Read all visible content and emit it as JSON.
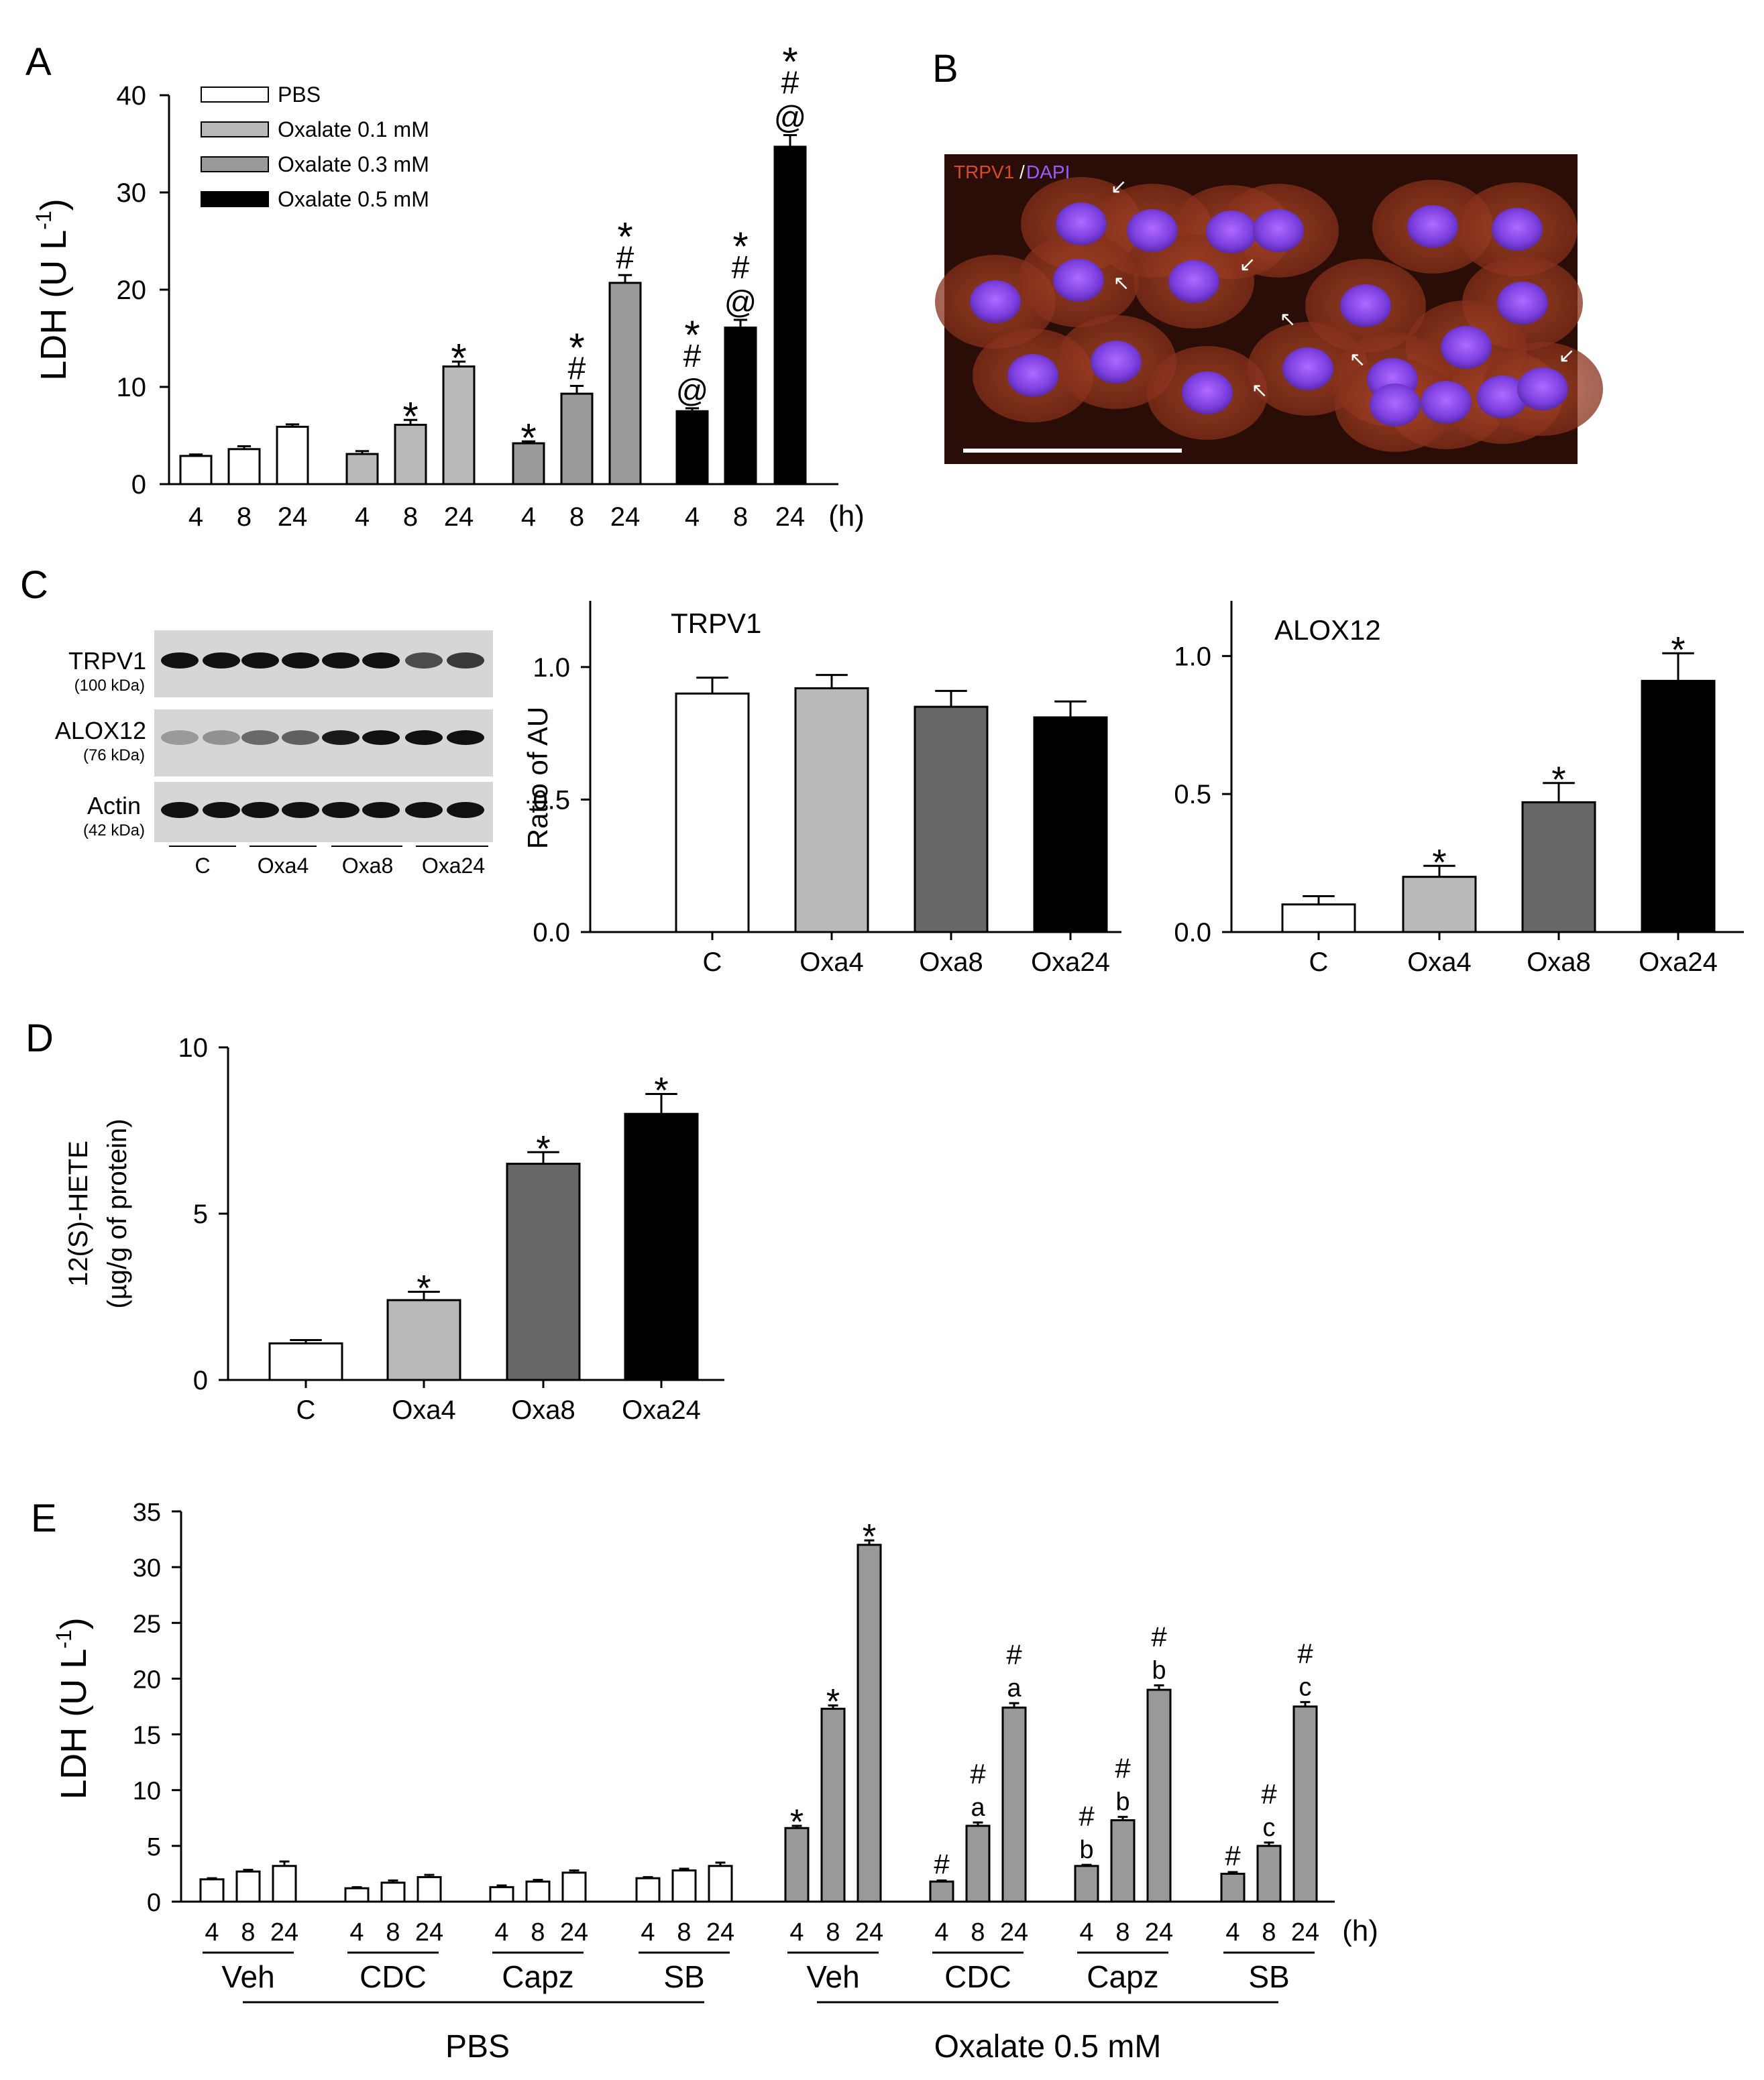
{
  "colors": {
    "white": "#ffffff",
    "light_gray": "#b9b9b9",
    "mid_gray": "#999999",
    "dark_gray": "#676767",
    "black": "#000000"
  },
  "panels": {
    "A": {
      "letter": "A"
    },
    "B": {
      "letter": "B",
      "label_trpv1": "TRPV1",
      "label_slash": "/",
      "label_dapi": "DAPI"
    },
    "C": {
      "letter": "C",
      "blot_bands": [
        {
          "name": "TRPV1",
          "kda": "(100 kDa)"
        },
        {
          "name": "ALOX12",
          "kda": "(76 kDa)"
        },
        {
          "name": "Actin",
          "kda": "(42 kDa)"
        }
      ],
      "blot_lanes": [
        "C",
        "Oxa4",
        "Oxa8",
        "Oxa24"
      ]
    },
    "D": {
      "letter": "D"
    },
    "E": {
      "letter": "E",
      "groups": [
        "Veh",
        "CDC",
        "Capz",
        "SB",
        "Veh",
        "CDC",
        "Capz",
        "SB"
      ],
      "supergroups": [
        "PBS",
        "Oxalate 0.5 mM"
      ]
    }
  },
  "chart_data": [
    {
      "id": "A",
      "type": "bar",
      "ylabel": "LDH (U L",
      "ylabel_sup": "-1",
      ")": ")",
      "ylim": [
        0,
        40
      ],
      "yticks": [
        0,
        10,
        20,
        30,
        40
      ],
      "x_unit": "(h)",
      "categories": [
        "4",
        "8",
        "24"
      ],
      "series": [
        {
          "name": "PBS",
          "color": "white",
          "values": [
            2.9,
            3.6,
            5.9
          ],
          "errors": [
            0.15,
            0.3,
            0.25
          ],
          "annotations": [
            [],
            [],
            []
          ]
        },
        {
          "name": "Oxalate 0.1 mM",
          "color": "light_gray",
          "values": [
            3.1,
            6.1,
            12.1
          ],
          "errors": [
            0.3,
            0.5,
            0.5
          ],
          "annotations": [
            [],
            [
              "*"
            ],
            [
              "*"
            ]
          ]
        },
        {
          "name": "Oxalate 0.3 mM",
          "color": "mid_gray",
          "values": [
            4.2,
            9.3,
            20.7
          ],
          "errors": [
            0.2,
            0.8,
            0.8
          ],
          "annotations": [
            [
              "*"
            ],
            [
              "*",
              "#"
            ],
            [
              "*",
              "#"
            ]
          ]
        },
        {
          "name": "Oxalate 0.5 mM",
          "color": "black",
          "values": [
            7.5,
            16.1,
            34.7
          ],
          "errors": [
            0.3,
            0.8,
            1.2
          ],
          "annotations": [
            [
              "*",
              "#",
              "@"
            ],
            [
              "*",
              "#",
              "@"
            ],
            [
              "*",
              "#",
              "@"
            ]
          ]
        }
      ]
    },
    {
      "id": "C-TRPV1",
      "type": "bar",
      "title": "TRPV1",
      "ylabel": "Ratio of AU",
      "ylim": [
        0,
        1.25
      ],
      "yticks": [
        "0.0",
        "0.5",
        "1.0"
      ],
      "categories": [
        "C",
        "Oxa4",
        "Oxa8",
        "Oxa24"
      ],
      "colors": [
        "white",
        "light_gray",
        "dark_gray",
        "black"
      ],
      "values": [
        0.9,
        0.92,
        0.85,
        0.81
      ],
      "errors": [
        0.06,
        0.05,
        0.06,
        0.06
      ],
      "annotations": [
        "",
        "",
        "",
        ""
      ]
    },
    {
      "id": "C-ALOX12",
      "type": "bar",
      "title": "ALOX12",
      "ylim": [
        0,
        1.2
      ],
      "yticks": [
        "0.0",
        "0.5",
        "1.0"
      ],
      "categories": [
        "C",
        "Oxa4",
        "Oxa8",
        "Oxa24"
      ],
      "colors": [
        "white",
        "light_gray",
        "dark_gray",
        "black"
      ],
      "values": [
        0.1,
        0.2,
        0.47,
        0.91
      ],
      "errors": [
        0.03,
        0.04,
        0.07,
        0.1
      ],
      "annotations": [
        "",
        "*",
        "*",
        "*"
      ]
    },
    {
      "id": "D",
      "type": "bar",
      "ylabel": "12(S)-HETE",
      "ylabel2": "(µg/g of protein)",
      "ylim": [
        0,
        10
      ],
      "yticks": [
        "0",
        "5",
        "10"
      ],
      "categories": [
        "C",
        "Oxa4",
        "Oxa8",
        "Oxa24"
      ],
      "colors": [
        "white",
        "light_gray",
        "dark_gray",
        "black"
      ],
      "values": [
        1.1,
        2.4,
        6.5,
        8.0
      ],
      "errors": [
        0.1,
        0.25,
        0.35,
        0.6
      ],
      "annotations": [
        "",
        "*",
        "*",
        "*"
      ]
    },
    {
      "id": "E",
      "type": "bar",
      "ylabel": "LDH (U L",
      "ylabel_sup": "-1",
      "ylim": [
        0,
        35
      ],
      "yticks": [
        "0",
        "5",
        "10",
        "15",
        "20",
        "25",
        "30",
        "35"
      ],
      "x_unit": "(h)",
      "categories": [
        "4",
        "8",
        "24"
      ],
      "groups": [
        {
          "label": "Veh",
          "color": "white",
          "values": [
            2.0,
            2.7,
            3.2
          ],
          "errors": [
            0.1,
            0.15,
            0.4
          ],
          "annotations": [
            [],
            [],
            []
          ]
        },
        {
          "label": "CDC",
          "color": "white",
          "values": [
            1.2,
            1.7,
            2.2
          ],
          "errors": [
            0.1,
            0.2,
            0.2
          ],
          "annotations": [
            [],
            [],
            []
          ]
        },
        {
          "label": "Capz",
          "color": "white",
          "values": [
            1.3,
            1.8,
            2.6
          ],
          "errors": [
            0.15,
            0.15,
            0.2
          ],
          "annotations": [
            [],
            [],
            []
          ]
        },
        {
          "label": "SB",
          "color": "white",
          "values": [
            2.1,
            2.8,
            3.2
          ],
          "errors": [
            0.1,
            0.15,
            0.3
          ],
          "annotations": [
            [],
            [],
            []
          ]
        },
        {
          "label": "Veh",
          "color": "mid_gray",
          "values": [
            6.6,
            17.3,
            32.0
          ],
          "errors": [
            0.2,
            0.3,
            0.4
          ],
          "annotations": [
            [
              "*"
            ],
            [
              "*"
            ],
            [
              "*"
            ]
          ]
        },
        {
          "label": "CDC",
          "color": "mid_gray",
          "values": [
            1.8,
            6.8,
            17.4
          ],
          "errors": [
            0.1,
            0.3,
            0.4
          ],
          "annotations": [
            [
              "#"
            ],
            [
              "#",
              "a"
            ],
            [
              "#",
              "a"
            ]
          ]
        },
        {
          "label": "Capz",
          "color": "mid_gray",
          "values": [
            3.2,
            7.3,
            19.0
          ],
          "errors": [
            0.1,
            0.3,
            0.4
          ],
          "annotations": [
            [
              "#",
              "b"
            ],
            [
              "#",
              "b"
            ],
            [
              "#",
              "b"
            ]
          ]
        },
        {
          "label": "SB",
          "color": "mid_gray",
          "values": [
            2.5,
            5.0,
            17.5
          ],
          "errors": [
            0.15,
            0.3,
            0.4
          ],
          "annotations": [
            [
              "#"
            ],
            [
              "#",
              "c"
            ],
            [
              "#",
              "c"
            ]
          ]
        }
      ]
    }
  ]
}
